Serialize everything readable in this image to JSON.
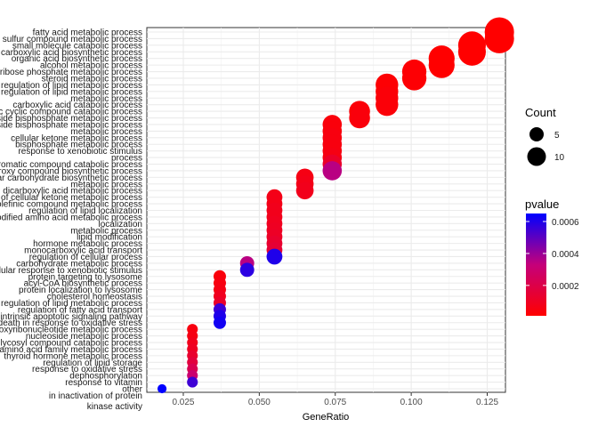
{
  "chart_data": {
    "type": "scatter",
    "title": "",
    "xlabel": "GeneRatio",
    "ylabel": "",
    "xlim": [
      0.013,
      0.131
    ],
    "xticks": [
      "0.025",
      "0.050",
      "0.075",
      "0.100",
      "0.125"
    ],
    "xtick_values": [
      0.025,
      0.05,
      0.075,
      0.1,
      0.125
    ],
    "grid": true,
    "legend_position": "right",
    "legend": {
      "size_title": "Count",
      "size_values": [
        "5",
        "10"
      ],
      "color_title": "pvalue",
      "color_ticks": [
        "0.0006",
        "0.0004",
        "0.0002"
      ],
      "color_tick_values": [
        0.0006,
        0.0004,
        0.0002
      ],
      "color_range": [
        1e-05,
        0.00065
      ],
      "color_low": "#ff0000",
      "color_high": "#0000ff"
    },
    "points": [
      {
        "label": "fatty acid metabolic process",
        "x": 0.129,
        "count": 14,
        "pvalue": 1e-05
      },
      {
        "label": "sulfur compound metabolic process",
        "x": 0.129,
        "count": 14,
        "pvalue": 1e-05
      },
      {
        "label": "small molecule catabolic process",
        "x": 0.12,
        "count": 13,
        "pvalue": 1e-05
      },
      {
        "label": "carboxylic acid biosynthetic process",
        "x": 0.12,
        "count": 13,
        "pvalue": 1e-05
      },
      {
        "label": "organic acid biosynthetic process",
        "x": 0.11,
        "count": 12,
        "pvalue": 1e-05
      },
      {
        "label": "alcohol metabolic process",
        "x": 0.11,
        "count": 12,
        "pvalue": 1e-05
      },
      {
        "label": "ribose phosphate metabolic process",
        "x": 0.101,
        "count": 11,
        "pvalue": 2e-05
      },
      {
        "label": "steroid metabolic process",
        "x": 0.101,
        "count": 11,
        "pvalue": 2e-05
      },
      {
        "label": "regulation of lipid metabolic process",
        "x": 0.092,
        "count": 10,
        "pvalue": 2e-05
      },
      {
        "label": "regulation of lipid metabolic process",
        "x": 0.092,
        "count": 10,
        "pvalue": 2e-05
      },
      {
        "label": "metabolic process",
        "x": 0.092,
        "count": 10,
        "pvalue": 3e-05
      },
      {
        "label": "carboxylic acid catabolic process",
        "x": 0.092,
        "count": 10,
        "pvalue": 3e-05
      },
      {
        "label": "organic cyclic compound catabolic process",
        "x": 0.083,
        "count": 9,
        "pvalue": 3e-05
      },
      {
        "label": "nucleoside bisphosphate metabolic process",
        "x": 0.083,
        "count": 9,
        "pvalue": 4e-05
      },
      {
        "label": "ribonucleoside bisphosphate metabolic process",
        "x": 0.074,
        "count": 8,
        "pvalue": 4e-05
      },
      {
        "label": "metabolic process",
        "x": 0.074,
        "count": 8,
        "pvalue": 4e-05
      },
      {
        "label": "cellular ketone metabolic process",
        "x": 0.074,
        "count": 8,
        "pvalue": 5e-05
      },
      {
        "label": "bisphosphate metabolic process",
        "x": 0.074,
        "count": 8,
        "pvalue": 5e-05
      },
      {
        "label": "response to xenobiotic stimulus",
        "x": 0.074,
        "count": 8,
        "pvalue": 5e-05
      },
      {
        "label": "process",
        "x": 0.074,
        "count": 8,
        "pvalue": 6e-05
      },
      {
        "label": "aromatic compound catabolic process",
        "x": 0.074,
        "count": 8,
        "pvalue": 0.00012
      },
      {
        "label": "organic hydroxy compound biosynthetic process",
        "x": 0.074,
        "count": 8,
        "pvalue": 0.00035
      },
      {
        "label": "cellular carbohydrate biosynthetic process",
        "x": 0.065,
        "count": 7,
        "pvalue": 6e-05
      },
      {
        "label": "metabolic process",
        "x": 0.065,
        "count": 7,
        "pvalue": 7e-05
      },
      {
        "label": "dicarboxylic acid metabolic process",
        "x": 0.065,
        "count": 7,
        "pvalue": 8e-05
      },
      {
        "label": "regulation of cellular ketone metabolic process",
        "x": 0.055,
        "count": 6,
        "pvalue": 7e-05
      },
      {
        "label": "olefinic compound metabolic process",
        "x": 0.055,
        "count": 6,
        "pvalue": 7e-05
      },
      {
        "label": "regulation of lipid localization",
        "x": 0.055,
        "count": 6,
        "pvalue": 8e-05
      },
      {
        "label": "cellular modified amino acid metabolic process",
        "x": 0.055,
        "count": 6,
        "pvalue": 8e-05
      },
      {
        "label": "localization",
        "x": 0.055,
        "count": 6,
        "pvalue": 9e-05
      },
      {
        "label": "metabolic process",
        "x": 0.055,
        "count": 6,
        "pvalue": 0.0001
      },
      {
        "label": "lipid modification",
        "x": 0.055,
        "count": 6,
        "pvalue": 0.00011
      },
      {
        "label": "hormone metabolic process",
        "x": 0.055,
        "count": 6,
        "pvalue": 0.00013
      },
      {
        "label": "monocarboxylic acid transport",
        "x": 0.055,
        "count": 6,
        "pvalue": 0.00015
      },
      {
        "label": "regulation of cellular process",
        "x": 0.055,
        "count": 6,
        "pvalue": 0.0006
      },
      {
        "label": "carbohydrate metabolic process",
        "x": 0.046,
        "count": 5,
        "pvalue": 0.00035
      },
      {
        "label": "cellular response to xenobiotic stimulus",
        "x": 0.046,
        "count": 5,
        "pvalue": 0.00058
      },
      {
        "label": "protein targeting to lysosome",
        "x": 0.037,
        "count": 4,
        "pvalue": 4e-05
      },
      {
        "label": "acyl-CoA biosynthetic process",
        "x": 0.037,
        "count": 4,
        "pvalue": 5e-05
      },
      {
        "label": "protein localization to lysosome",
        "x": 0.037,
        "count": 4,
        "pvalue": 6e-05
      },
      {
        "label": "cholesterol homeostasis",
        "x": 0.037,
        "count": 4,
        "pvalue": 9e-05
      },
      {
        "label": "negative regulation of lipid metabolic process",
        "x": 0.037,
        "count": 4,
        "pvalue": 0.00012
      },
      {
        "label": "regulation of fatty acid transport",
        "x": 0.037,
        "count": 4,
        "pvalue": 0.00055
      },
      {
        "label": "intrinsic apoptotic signaling pathway",
        "x": 0.037,
        "count": 4,
        "pvalue": 0.0006
      },
      {
        "label": "cell death in response to oxidative stress",
        "x": 0.037,
        "count": 4,
        "pvalue": 0.00062
      },
      {
        "label": "deoxyribonucleotide metabolic process",
        "x": 0.028,
        "count": 3,
        "pvalue": 5e-05
      },
      {
        "label": "nucleoside metabolic process",
        "x": 0.028,
        "count": 3,
        "pvalue": 6e-05
      },
      {
        "label": "glycosyl compound catabolic process",
        "x": 0.028,
        "count": 3,
        "pvalue": 8e-05
      },
      {
        "label": "aromatic amino acid family metabolic process",
        "x": 0.028,
        "count": 3,
        "pvalue": 0.0001
      },
      {
        "label": "thyroid hormone metabolic process",
        "x": 0.028,
        "count": 3,
        "pvalue": 0.00013
      },
      {
        "label": "regulation of lipid storage",
        "x": 0.028,
        "count": 3,
        "pvalue": 0.00017
      },
      {
        "label": "response to oxidative stress",
        "x": 0.028,
        "count": 3,
        "pvalue": 0.00022
      },
      {
        "label": "dephosphorylation",
        "x": 0.028,
        "count": 3,
        "pvalue": 0.0003
      },
      {
        "label": "response to vitamin",
        "x": 0.028,
        "count": 3,
        "pvalue": 0.00055
      },
      {
        "label": "other",
        "x": 0.018,
        "count": 2,
        "pvalue": 0.00065
      }
    ],
    "bottom_label": "in inactivation of protein kinase activity",
    "bottom_label_lines": [
      "in inactivation of protein",
      "kinase activity"
    ]
  }
}
